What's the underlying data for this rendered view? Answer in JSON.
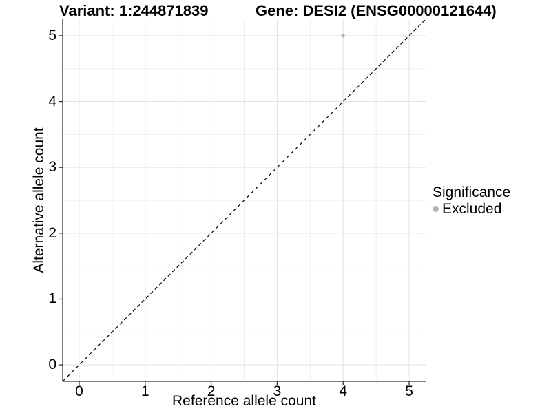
{
  "header": {
    "variant_title": "Variant: 1:244871839",
    "gene_title": "Gene: DESI2 (ENSG00000121644)"
  },
  "chart_data": {
    "type": "scatter",
    "title": "Variant: 1:244871839   Gene: DESI2 (ENSG00000121644)",
    "xlabel": "Reference allele count",
    "ylabel": "Alternative allele count",
    "xlim": [
      -0.25,
      5.25
    ],
    "ylim": [
      -0.25,
      5.25
    ],
    "x_ticks": [
      0,
      1,
      2,
      3,
      4,
      5
    ],
    "y_ticks": [
      0,
      1,
      2,
      3,
      4,
      5
    ],
    "minor_ticks": [
      0.5,
      1.5,
      2.5,
      3.5,
      4.5
    ],
    "grid": "major and minor, light gray on white",
    "reference_line": {
      "kind": "identity y=x",
      "style": "dashed",
      "color": "#000000"
    },
    "series": [
      {
        "name": "Excluded",
        "color": "#b3b3b3",
        "points": [
          {
            "x": 4,
            "y": 5
          }
        ]
      }
    ],
    "legend": {
      "title": "Significance",
      "position": "right",
      "entries": [
        {
          "label": "Excluded",
          "color": "#b3b3b3"
        }
      ]
    }
  },
  "colors": {
    "background": "#ffffff",
    "axis_line": "#333333",
    "grid_major": "#e2e2e2",
    "grid_minor": "#efefef",
    "text": "#000000",
    "point": "#b3b3b3"
  }
}
